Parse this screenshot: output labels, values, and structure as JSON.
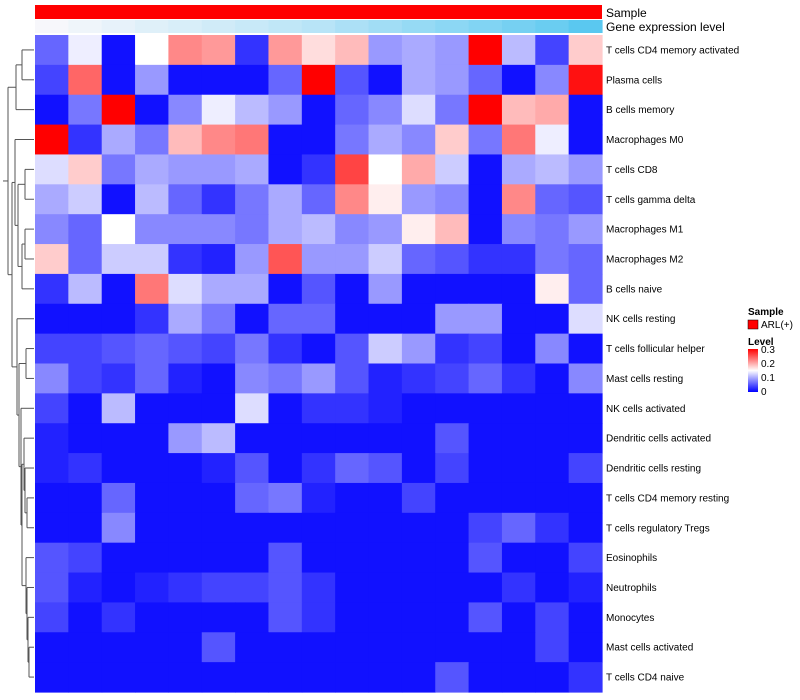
{
  "chart_data": {
    "type": "heatmap",
    "title": "",
    "annotation_tracks": [
      {
        "name": "Sample",
        "color": "#ff0000"
      },
      {
        "name": "Gene expression level",
        "gradient": [
          "#f7f7fb",
          "#5ac8f0"
        ]
      }
    ],
    "legend": {
      "sample_title": "Sample",
      "sample_items": [
        {
          "label": "ARL(+)",
          "color": "#ff0000"
        }
      ],
      "level_title": "Level",
      "level_ticks": [
        "0.3",
        "0.2",
        "0.1",
        "0"
      ],
      "placement": "right"
    },
    "color_scale": {
      "low": "#0000ff",
      "mid": "#ffffff",
      "high": "#ff0000",
      "min": 0,
      "mid_value": 0.15,
      "max": 0.3
    },
    "rows": [
      "T cells CD4 memory activated",
      "Plasma cells",
      "B cells memory",
      "Macrophages M0",
      "T cells CD8",
      "T cells gamma delta",
      "Macrophages M1",
      "Macrophages M2",
      "B cells naive",
      "NK cells resting",
      "T cells follicular helper",
      "Mast cells resting",
      "NK cells activated",
      "Dendritic cells activated",
      "Dendritic cells resting",
      "T cells CD4 memory resting",
      "T cells regulatory  Tregs",
      "Eosinophils",
      "Neutrophils",
      "Monocytes",
      "Mast cells activated",
      "T cells CD4 naive"
    ],
    "values": [
      [
        0.06,
        0.14,
        0.01,
        0.15,
        0.22,
        0.21,
        0.03,
        0.21,
        0.17,
        0.19,
        0.09,
        0.1,
        0.09,
        0.3,
        0.11,
        0.04,
        0.18
      ],
      [
        0.04,
        0.24,
        0.01,
        0.09,
        0.01,
        0.01,
        0.01,
        0.06,
        0.3,
        0.05,
        0.01,
        0.1,
        0.09,
        0.06,
        0.01,
        0.08,
        0.29
      ],
      [
        0.01,
        0.07,
        0.3,
        0.01,
        0.08,
        0.14,
        0.11,
        0.09,
        0.01,
        0.06,
        0.08,
        0.13,
        0.07,
        0.3,
        0.19,
        0.2,
        0.01
      ],
      [
        0.3,
        0.03,
        0.1,
        0.07,
        0.19,
        0.22,
        0.23,
        0.01,
        0.01,
        0.07,
        0.1,
        0.08,
        0.18,
        0.07,
        0.23,
        0.14,
        0.01
      ],
      [
        0.13,
        0.18,
        0.07,
        0.1,
        0.09,
        0.09,
        0.1,
        0.01,
        0.03,
        0.26,
        0.15,
        0.2,
        0.12,
        0.01,
        0.1,
        0.11,
        0.09
      ],
      [
        0.1,
        0.12,
        0.01,
        0.11,
        0.06,
        0.03,
        0.07,
        0.1,
        0.06,
        0.22,
        0.16,
        0.09,
        0.08,
        0.01,
        0.22,
        0.06,
        0.05
      ],
      [
        0.08,
        0.06,
        0.15,
        0.08,
        0.08,
        0.08,
        0.07,
        0.1,
        0.11,
        0.08,
        0.09,
        0.16,
        0.19,
        0.01,
        0.08,
        0.07,
        0.09
      ],
      [
        0.18,
        0.06,
        0.12,
        0.12,
        0.03,
        0.02,
        0.09,
        0.25,
        0.09,
        0.09,
        0.12,
        0.06,
        0.05,
        0.03,
        0.03,
        0.07,
        0.06
      ],
      [
        0.03,
        0.11,
        0.01,
        0.23,
        0.13,
        0.1,
        0.1,
        0.01,
        0.05,
        0.01,
        0.09,
        0.01,
        0.01,
        0.01,
        0.01,
        0.16,
        0.06
      ],
      [
        0.01,
        0.01,
        0.01,
        0.03,
        0.1,
        0.07,
        0.01,
        0.06,
        0.06,
        0.01,
        0.01,
        0.01,
        0.09,
        0.09,
        0.01,
        0.01,
        0.13
      ],
      [
        0.04,
        0.04,
        0.05,
        0.06,
        0.05,
        0.04,
        0.07,
        0.03,
        0.01,
        0.05,
        0.12,
        0.09,
        0.03,
        0.04,
        0.01,
        0.08,
        0.01
      ],
      [
        0.08,
        0.04,
        0.03,
        0.06,
        0.02,
        0.01,
        0.08,
        0.07,
        0.09,
        0.05,
        0.02,
        0.03,
        0.04,
        0.06,
        0.03,
        0.01,
        0.08
      ],
      [
        0.04,
        0.01,
        0.11,
        0.01,
        0.01,
        0.01,
        0.13,
        0.01,
        0.03,
        0.03,
        0.02,
        0.01,
        0.01,
        0.01,
        0.01,
        0.01,
        0.01
      ],
      [
        0.02,
        0.01,
        0.01,
        0.01,
        0.09,
        0.11,
        0.01,
        0.01,
        0.01,
        0.01,
        0.01,
        0.01,
        0.05,
        0.01,
        0.01,
        0.01,
        0.01
      ],
      [
        0.02,
        0.03,
        0.01,
        0.01,
        0.01,
        0.02,
        0.05,
        0.01,
        0.03,
        0.06,
        0.05,
        0.01,
        0.04,
        0.01,
        0.01,
        0.01,
        0.04
      ],
      [
        0.01,
        0.01,
        0.06,
        0.01,
        0.01,
        0.01,
        0.06,
        0.07,
        0.02,
        0.01,
        0.01,
        0.04,
        0.01,
        0.01,
        0.01,
        0.01,
        0.01
      ],
      [
        0.01,
        0.01,
        0.08,
        0.01,
        0.01,
        0.01,
        0.01,
        0.01,
        0.01,
        0.01,
        0.01,
        0.01,
        0.01,
        0.04,
        0.06,
        0.03,
        0.01
      ],
      [
        0.05,
        0.04,
        0.01,
        0.01,
        0.01,
        0.01,
        0.01,
        0.05,
        0.01,
        0.01,
        0.01,
        0.01,
        0.01,
        0.05,
        0.01,
        0.01,
        0.04
      ],
      [
        0.05,
        0.02,
        0.01,
        0.02,
        0.03,
        0.04,
        0.04,
        0.05,
        0.03,
        0.01,
        0.01,
        0.01,
        0.01,
        0.01,
        0.03,
        0.01,
        0.02
      ],
      [
        0.04,
        0.01,
        0.03,
        0.01,
        0.01,
        0.01,
        0.01,
        0.05,
        0.03,
        0.01,
        0.01,
        0.01,
        0.01,
        0.05,
        0.01,
        0.04,
        0.01
      ],
      [
        0.01,
        0.01,
        0.01,
        0.01,
        0.01,
        0.05,
        0.01,
        0.01,
        0.01,
        0.01,
        0.01,
        0.01,
        0.01,
        0.01,
        0.01,
        0.04,
        0.01
      ],
      [
        0.01,
        0.01,
        0.01,
        0.01,
        0.01,
        0.01,
        0.01,
        0.01,
        0.01,
        0.01,
        0.01,
        0.01,
        0.05,
        0.01,
        0.01,
        0.01,
        0.03
      ]
    ],
    "gene_expression_level": [
      0.0,
      0.05,
      0.1,
      0.15,
      0.2,
      0.25,
      0.3,
      0.35,
      0.4,
      0.48,
      0.55,
      0.62,
      0.68,
      0.75,
      0.82,
      0.9,
      1.0
    ],
    "row_dendrogram": true
  }
}
